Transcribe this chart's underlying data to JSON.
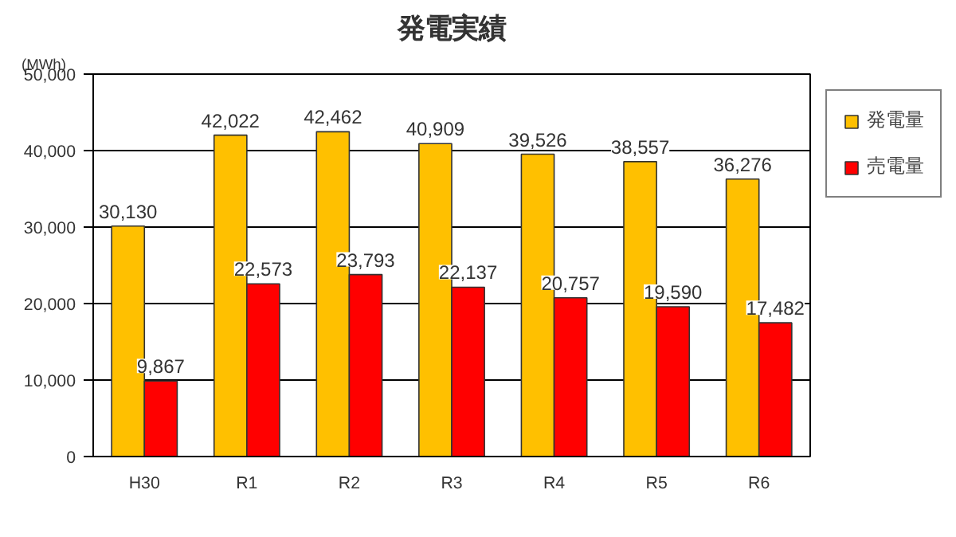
{
  "chart_data": {
    "type": "bar",
    "title": "発電実績",
    "ylabel": "(MWh)",
    "categories": [
      "H30",
      "R1",
      "R2",
      "R3",
      "R4",
      "R5",
      "R6"
    ],
    "series": [
      {
        "name": "発電量",
        "color": "#ffc000",
        "values": [
          30130,
          42022,
          42462,
          40909,
          39526,
          38557,
          36276
        ],
        "value_labels": [
          "30,130",
          "42,022",
          "42,462",
          "40,909",
          "39,526",
          "38,557",
          "36,276"
        ]
      },
      {
        "name": "売電量",
        "color": "#ff0000",
        "values": [
          9867,
          22573,
          23793,
          22137,
          20757,
          19590,
          17482
        ],
        "value_labels": [
          "9,867",
          "22,573",
          "23,793",
          "22,137",
          "20,757",
          "19,590",
          "17,482"
        ]
      }
    ],
    "ylim": [
      0,
      50000
    ],
    "yticks": [
      {
        "value": 0,
        "label": "0"
      },
      {
        "value": 10000,
        "label": "10,000"
      },
      {
        "value": 20000,
        "label": "20,000"
      },
      {
        "value": 30000,
        "label": "30,000"
      },
      {
        "value": 40000,
        "label": "40,000"
      },
      {
        "value": 50000,
        "label": "50,000"
      }
    ],
    "grid": "y",
    "legend": "right"
  }
}
